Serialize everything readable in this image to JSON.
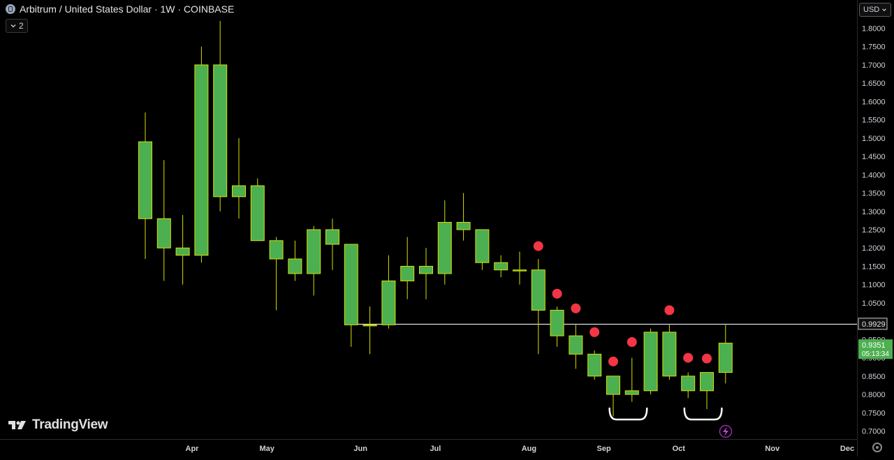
{
  "header": {
    "title": "Arbitrum / United States Dollar · 1W · COINBASE"
  },
  "indicator_toggle": {
    "icon": "chevron-down-icon",
    "count": "2"
  },
  "currency_selector": {
    "label": "USD",
    "icon": "chevron-down-icon"
  },
  "branding": {
    "name": "TradingView"
  },
  "colors": {
    "candle_fill": "#4caf50",
    "candle_border": "#d8e000",
    "wick": "#d8e000",
    "marker": "#f23645",
    "hline": "#e0e0e8",
    "price_label_bg": "#4caf50",
    "lightning_badge": "#9c27b0",
    "annotation": "#ffffff"
  },
  "chart_data": {
    "type": "candlestick",
    "title": "Arbitrum / United States Dollar · 1W · COINBASE",
    "interval": "1W",
    "exchange": "COINBASE",
    "ylim": [
      0.68,
      1.83
    ],
    "y_ticks": [
      "1.8000",
      "1.7500",
      "1.7000",
      "1.6500",
      "1.6000",
      "1.5500",
      "1.5000",
      "1.4500",
      "1.4000",
      "1.3500",
      "1.3000",
      "1.2500",
      "1.2000",
      "1.1500",
      "1.1000",
      "1.0500",
      "1.0000",
      "0.9500",
      "0.9000",
      "0.8500",
      "0.8000",
      "0.7500",
      "0.7000"
    ],
    "x_ticks": [
      "Apr",
      "May",
      "Jun",
      "Jul",
      "Aug",
      "Sep",
      "Oct",
      "Nov",
      "Dec"
    ],
    "x_tick_weeks": [
      2.5,
      6.5,
      11.5,
      15.5,
      20.5,
      24.5,
      28.5,
      33.5,
      37.5
    ],
    "candles": [
      {
        "week": 0,
        "open": 1.28,
        "high": 1.57,
        "low": 1.17,
        "close": 1.49
      },
      {
        "week": 1,
        "open": 1.28,
        "high": 1.44,
        "low": 1.11,
        "close": 1.2
      },
      {
        "week": 2,
        "open": 1.2,
        "high": 1.29,
        "low": 1.1,
        "close": 1.18
      },
      {
        "week": 3,
        "open": 1.18,
        "high": 1.75,
        "low": 1.16,
        "close": 1.7
      },
      {
        "week": 4,
        "open": 1.7,
        "high": 1.82,
        "low": 1.3,
        "close": 1.34
      },
      {
        "week": 5,
        "open": 1.34,
        "high": 1.5,
        "low": 1.28,
        "close": 1.37
      },
      {
        "week": 6,
        "open": 1.37,
        "high": 1.39,
        "low": 1.22,
        "close": 1.22
      },
      {
        "week": 7,
        "open": 1.22,
        "high": 1.23,
        "low": 1.03,
        "close": 1.17
      },
      {
        "week": 8,
        "open": 1.17,
        "high": 1.22,
        "low": 1.11,
        "close": 1.13
      },
      {
        "week": 9,
        "open": 1.13,
        "high": 1.26,
        "low": 1.07,
        "close": 1.25
      },
      {
        "week": 10,
        "open": 1.25,
        "high": 1.28,
        "low": 1.14,
        "close": 1.21
      },
      {
        "week": 11,
        "open": 1.21,
        "high": 1.21,
        "low": 0.93,
        "close": 0.99
      },
      {
        "week": 12,
        "open": 0.99,
        "high": 1.04,
        "low": 0.91,
        "close": 0.99
      },
      {
        "week": 13,
        "open": 0.99,
        "high": 1.18,
        "low": 0.98,
        "close": 1.11
      },
      {
        "week": 14,
        "open": 1.11,
        "high": 1.23,
        "low": 1.06,
        "close": 1.15
      },
      {
        "week": 15,
        "open": 1.15,
        "high": 1.2,
        "low": 1.06,
        "close": 1.13
      },
      {
        "week": 16,
        "open": 1.13,
        "high": 1.33,
        "low": 1.1,
        "close": 1.27
      },
      {
        "week": 17,
        "open": 1.27,
        "high": 1.35,
        "low": 1.22,
        "close": 1.25
      },
      {
        "week": 18,
        "open": 1.25,
        "high": 1.25,
        "low": 1.14,
        "close": 1.16
      },
      {
        "week": 19,
        "open": 1.16,
        "high": 1.18,
        "low": 1.12,
        "close": 1.14
      },
      {
        "week": 20,
        "open": 1.14,
        "high": 1.19,
        "low": 1.1,
        "close": 1.14
      },
      {
        "week": 21,
        "open": 1.14,
        "high": 1.17,
        "low": 0.91,
        "close": 1.03
      },
      {
        "week": 22,
        "open": 1.03,
        "high": 1.04,
        "low": 0.93,
        "close": 0.96
      },
      {
        "week": 23,
        "open": 0.96,
        "high": 0.99,
        "low": 0.87,
        "close": 0.91
      },
      {
        "week": 24,
        "open": 0.91,
        "high": 0.92,
        "low": 0.84,
        "close": 0.85
      },
      {
        "week": 25,
        "open": 0.85,
        "high": 0.85,
        "low": 0.74,
        "close": 0.8
      },
      {
        "week": 26,
        "open": 0.8,
        "high": 0.9,
        "low": 0.78,
        "close": 0.81
      },
      {
        "week": 27,
        "open": 0.81,
        "high": 0.98,
        "low": 0.8,
        "close": 0.97
      },
      {
        "week": 28,
        "open": 0.97,
        "high": 0.99,
        "low": 0.84,
        "close": 0.85
      },
      {
        "week": 29,
        "open": 0.85,
        "high": 0.86,
        "low": 0.79,
        "close": 0.81
      },
      {
        "week": 30,
        "open": 0.81,
        "high": 0.86,
        "low": 0.76,
        "close": 0.86
      },
      {
        "week": 31,
        "open": 0.86,
        "high": 0.99,
        "low": 0.83,
        "close": 0.94
      }
    ],
    "markers": [
      {
        "week": 21,
        "price": 1.205
      },
      {
        "week": 22,
        "price": 1.075
      },
      {
        "week": 23,
        "price": 1.035
      },
      {
        "week": 24,
        "price": 0.97
      },
      {
        "week": 25,
        "price": 0.89
      },
      {
        "week": 26,
        "price": 0.943
      },
      {
        "week": 28,
        "price": 1.03
      },
      {
        "week": 29,
        "price": 0.9
      },
      {
        "week": 30,
        "price": 0.898
      }
    ],
    "horizontal_line": {
      "price": 0.9929,
      "label": "0.9929",
      "start_week": 11
    },
    "last_price": {
      "price": 0.9351,
      "label": "0.9351",
      "countdown": "05:13:34"
    },
    "annotations": [
      {
        "type": "bracket",
        "from_week": 24.8,
        "to_week": 26.8
      },
      {
        "type": "bracket",
        "from_week": 28.8,
        "to_week": 30.8
      }
    ]
  }
}
